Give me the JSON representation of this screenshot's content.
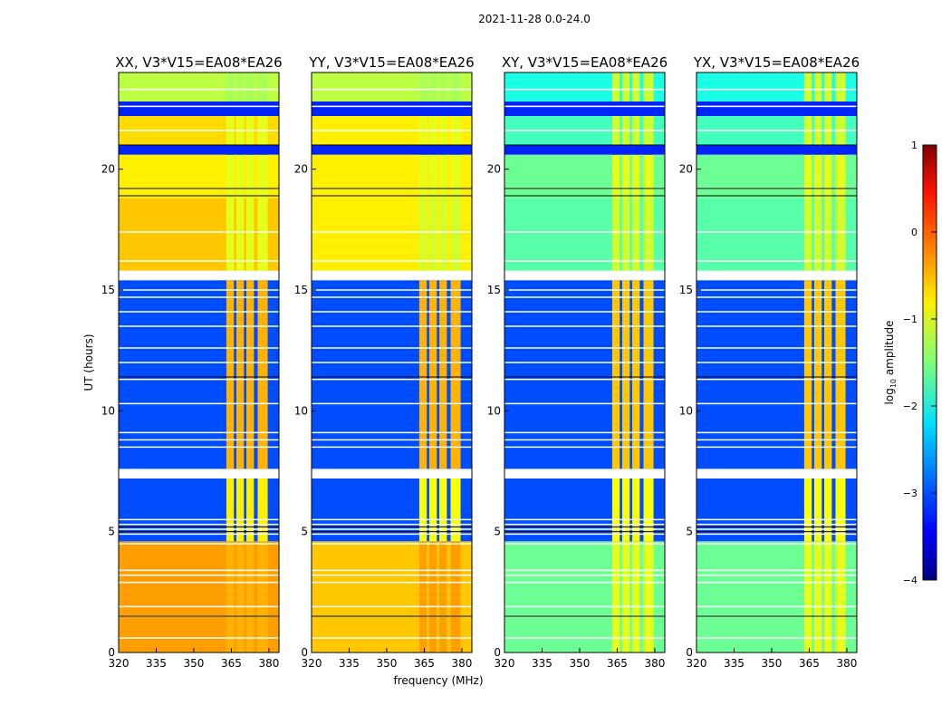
{
  "chart_data": {
    "type": "heatmap",
    "title": "2021-11-28 0.0-24.0",
    "xlabel": "frequency (MHz)",
    "ylabel": "UT (hours)",
    "xlim": [
      320,
      384
    ],
    "ylim": [
      0,
      24
    ],
    "xticks": [
      "320",
      "335",
      "350",
      "365",
      "380"
    ],
    "yticks": [
      "0",
      "5",
      "10",
      "15",
      "20"
    ],
    "rfi_bands_mhz": [
      [
        363,
        366
      ],
      [
        367,
        370
      ],
      [
        371,
        374
      ],
      [
        375.5,
        379.5
      ]
    ],
    "colorbar": {
      "label": "log10 amplitude",
      "range": [
        -4,
        1
      ],
      "ticks": [
        "1",
        "0",
        "−1",
        "−2",
        "−3",
        "−4"
      ],
      "colormap": "jet"
    },
    "panels": [
      {
        "title": "XX, V3*V15=EA08*EA26",
        "segments": [
          [
            0,
            4.6,
            -0.4,
            -0.5
          ],
          [
            4.6,
            7.2,
            -3.0,
            -0.8
          ],
          [
            7.6,
            15.4,
            -3.0,
            -0.5
          ],
          [
            15.8,
            18.8,
            -0.6,
            -1.0
          ],
          [
            18.8,
            20.6,
            -0.8,
            -1.0
          ],
          [
            20.6,
            21.0,
            -3.2,
            -3.2
          ],
          [
            21.0,
            22.2,
            -0.7,
            -1.0
          ],
          [
            22.2,
            22.8,
            -3.2,
            -3.2
          ],
          [
            22.8,
            24,
            -1.2,
            -1.3
          ]
        ]
      },
      {
        "title": "YY, V3*V15=EA08*EA26",
        "segments": [
          [
            0,
            4.6,
            -0.6,
            -0.4
          ],
          [
            4.6,
            7.2,
            -3.0,
            -0.9
          ],
          [
            7.6,
            15.4,
            -3.0,
            -0.5
          ],
          [
            15.8,
            18.8,
            -0.8,
            -1.1
          ],
          [
            18.8,
            20.6,
            -0.8,
            -1.0
          ],
          [
            20.6,
            21.0,
            -3.2,
            -3.2
          ],
          [
            21.0,
            22.2,
            -0.8,
            -1.0
          ],
          [
            22.2,
            22.8,
            -3.2,
            -3.2
          ],
          [
            22.8,
            24,
            -1.2,
            -1.3
          ]
        ]
      },
      {
        "title": "XY, V3*V15=EA08*EA26",
        "segments": [
          [
            0,
            4.6,
            -1.6,
            -1.0
          ],
          [
            4.6,
            7.2,
            -3.0,
            -0.9
          ],
          [
            7.6,
            15.4,
            -3.0,
            -0.6
          ],
          [
            15.8,
            18.8,
            -1.7,
            -1.1
          ],
          [
            18.8,
            20.6,
            -1.6,
            -1.0
          ],
          [
            20.6,
            21.0,
            -3.2,
            -3.2
          ],
          [
            21.0,
            22.2,
            -1.8,
            -1.1
          ],
          [
            22.2,
            22.8,
            -3.2,
            -3.2
          ],
          [
            22.8,
            24,
            -2.0,
            -1.1
          ]
        ]
      },
      {
        "title": "YX, V3*V15=EA08*EA26",
        "segments": [
          [
            0,
            4.6,
            -1.6,
            -1.0
          ],
          [
            4.6,
            7.2,
            -3.0,
            -0.9
          ],
          [
            7.6,
            15.4,
            -3.0,
            -0.6
          ],
          [
            15.8,
            18.8,
            -1.7,
            -1.1
          ],
          [
            18.8,
            20.6,
            -1.6,
            -1.0
          ],
          [
            20.6,
            21.0,
            -3.2,
            -3.2
          ],
          [
            21.0,
            22.2,
            -1.8,
            -1.1
          ],
          [
            22.2,
            22.8,
            -3.2,
            -3.2
          ],
          [
            22.8,
            24,
            -2.0,
            -1.1
          ]
        ]
      }
    ],
    "flagged_rows_hours": [
      0.6,
      1.5,
      1.9,
      2.9,
      3.2,
      3.4,
      4.5,
      4.9,
      5.1,
      5.3,
      5.5,
      8.5,
      8.8,
      9.1,
      10.3,
      11.3,
      12.0,
      12.6,
      13.5,
      14.1,
      14.7,
      15.0,
      16.2,
      17.4,
      19.2,
      21.6,
      22.6,
      23.3
    ]
  }
}
